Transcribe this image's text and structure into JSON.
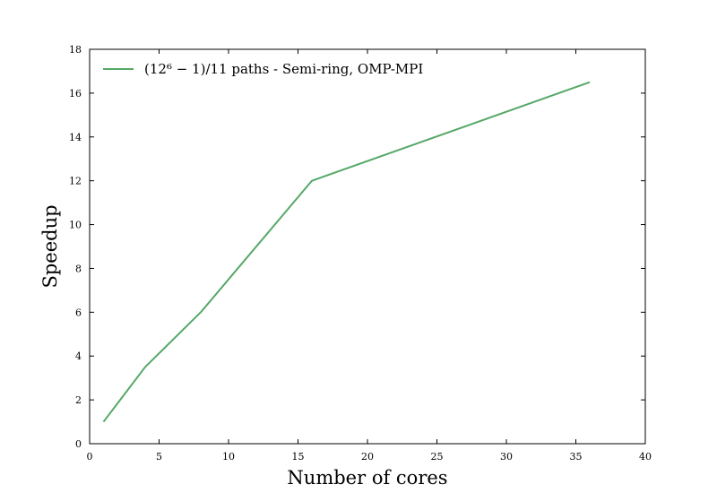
{
  "chart_data": {
    "type": "line",
    "xlabel": "Number of cores",
    "ylabel": "Speedup",
    "xlim": [
      0,
      40
    ],
    "ylim": [
      0,
      18
    ],
    "xticks": [
      0,
      5,
      10,
      15,
      20,
      25,
      30,
      35,
      40
    ],
    "yticks": [
      0,
      2,
      4,
      6,
      8,
      10,
      12,
      14,
      16,
      18
    ],
    "xtick_labels": [
      "0",
      "5",
      "10",
      "15",
      "20",
      "25",
      "30",
      "35",
      "40"
    ],
    "ytick_labels": [
      "0",
      "2",
      "4",
      "6",
      "8",
      "10",
      "12",
      "14",
      "16",
      "18"
    ],
    "grid": false,
    "legend_position": "top-left",
    "series": [
      {
        "name": "(12⁶ − 1)/11 paths - Semi-ring, OMP-MPI",
        "color": "#55a868",
        "x": [
          1,
          4,
          8,
          16,
          36
        ],
        "y": [
          1.0,
          3.5,
          6.0,
          12.0,
          16.5
        ]
      }
    ]
  }
}
